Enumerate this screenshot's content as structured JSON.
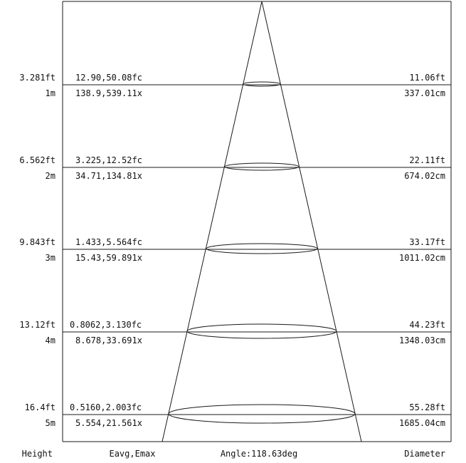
{
  "footer": {
    "height_label": "Height",
    "illuminance_label": "Eavg,Emax",
    "angle_label": "Angle:118.63deg",
    "diameter_label": "Diameter"
  },
  "levels": [
    {
      "height_ft": "3.281ft",
      "height_m": "1m",
      "fc": "12.90,50.08fc",
      "lx": "138.9,539.11x",
      "diameter_ft": "11.06ft",
      "diameter_cm": "337.01cm"
    },
    {
      "height_ft": "6.562ft",
      "height_m": "2m",
      "fc": "3.225,12.52fc",
      "lx": "34.71,134.81x",
      "diameter_ft": "22.11ft",
      "diameter_cm": "674.02cm"
    },
    {
      "height_ft": "9.843ft",
      "height_m": "3m",
      "fc": "1.433,5.564fc",
      "lx": "15.43,59.891x",
      "diameter_ft": "33.17ft",
      "diameter_cm": "1011.02cm"
    },
    {
      "height_ft": "13.12ft",
      "height_m": "4m",
      "fc": "0.8062,3.130fc",
      "lx": "8.678,33.691x",
      "diameter_ft": "44.23ft",
      "diameter_cm": "1348.03cm"
    },
    {
      "height_ft": "16.4ft",
      "height_m": "5m",
      "fc": "0.5160,2.003fc",
      "lx": "5.554,21.561x",
      "diameter_ft": "55.28ft",
      "diameter_cm": "1685.04cm"
    }
  ]
}
